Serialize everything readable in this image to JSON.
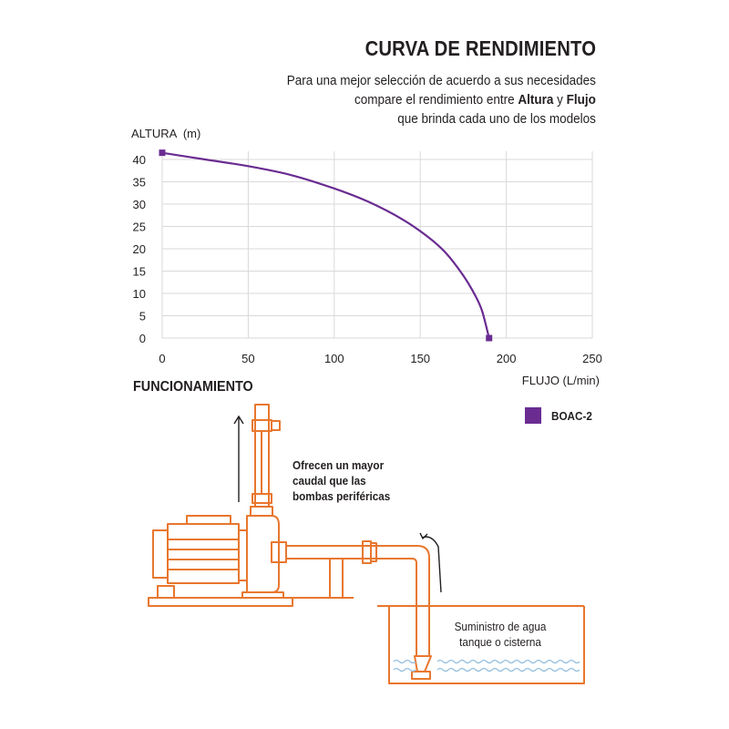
{
  "header": {
    "title": "CURVA DE RENDIMIENTO",
    "line1": "Para una mejor selección de acuerdo a sus necesidades",
    "line2_pre": "compare el rendimiento entre ",
    "line2_b1": "Altura",
    "line2_mid": " y ",
    "line2_b2": "Flujo",
    "line3": "que brinda cada uno de los modelos"
  },
  "chart_data": {
    "type": "line",
    "ylabel": "ALTURA  (m)",
    "xlabel": "FLUJO (L/min)",
    "xlim": [
      0,
      250
    ],
    "ylim": [
      0,
      40
    ],
    "x_ticks": [
      0,
      50,
      100,
      150,
      200,
      250
    ],
    "y_ticks": [
      0,
      5,
      10,
      15,
      20,
      25,
      30,
      35,
      40
    ],
    "grid": true,
    "legend_position": "bottom-right",
    "series": [
      {
        "name": "BOAC-2",
        "color": "#6a2c91",
        "x": [
          0,
          25,
          50,
          75,
          100,
          120,
          140,
          155,
          165,
          175,
          182,
          186,
          190
        ],
        "y": [
          41.5,
          40,
          38.5,
          36.5,
          33.5,
          30.5,
          26.5,
          22.5,
          19,
          14,
          9.5,
          6,
          0
        ],
        "endpoint_markers": true
      }
    ]
  },
  "section": {
    "title": "FUNCIONAMIENTO",
    "caption_flow": [
      "Ofrecen un mayor",
      "caudal que las",
      "bombas periféricas"
    ],
    "caption_supply": [
      "Suministro de agua",
      "tanque o cisterna"
    ]
  },
  "colors": {
    "accent": "#6a2c91",
    "illustration": "#e8772e",
    "grid": "#d9d9d9",
    "water": "#9ec4e0",
    "text": "#231f20"
  }
}
